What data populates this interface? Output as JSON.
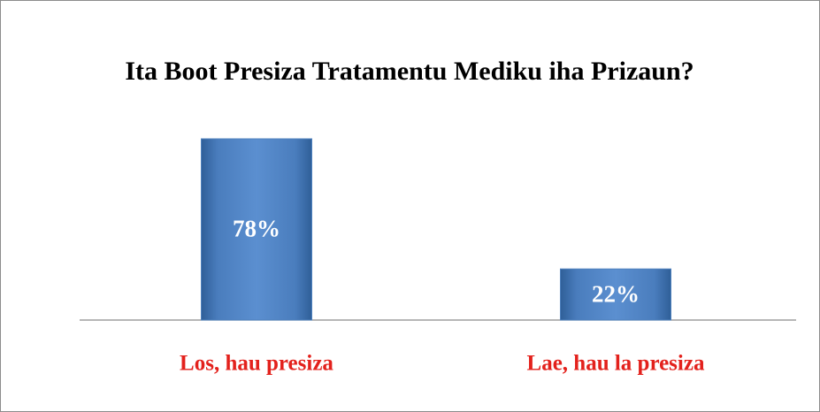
{
  "chart_data": {
    "type": "bar",
    "title": "Ita Boot Presiza Tratamentu Mediku iha Prizaun?",
    "categories": [
      "Los, hau presiza",
      "Lae, hau la presiza"
    ],
    "values": [
      78,
      22
    ],
    "value_labels": [
      "78%",
      "22%"
    ],
    "color": "#4f81bd",
    "category_color": "#e3211c"
  }
}
